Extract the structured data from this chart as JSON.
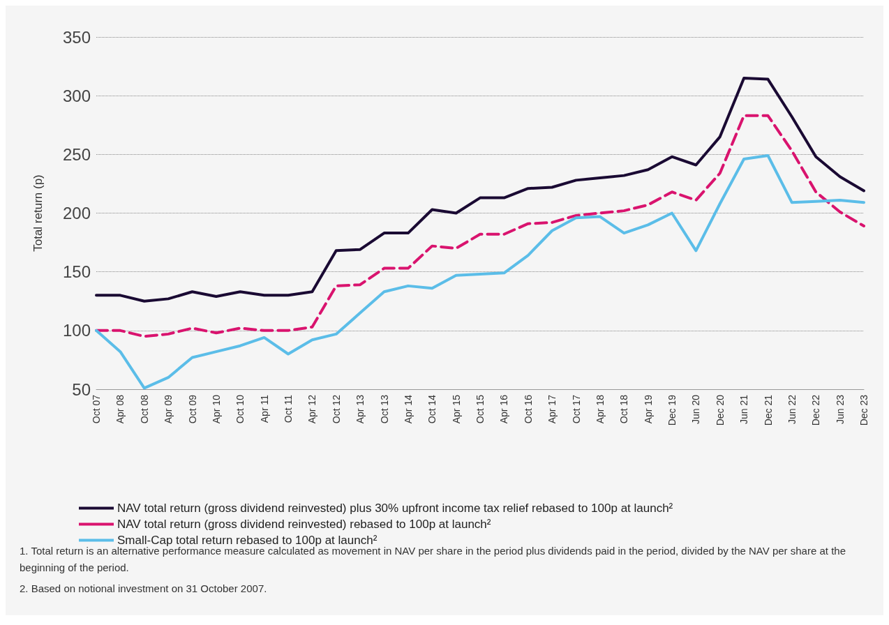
{
  "chart_data": {
    "type": "line",
    "ylabel": "Total return (p)",
    "categories": [
      "Oct 07",
      "Apr 08",
      "Oct 08",
      "Apr 09",
      "Oct 09",
      "Apr 10",
      "Oct 10",
      "Apr 11",
      "Oct 11",
      "Apr 12",
      "Oct 12",
      "Apr 13",
      "Oct 13",
      "Apr 14",
      "Oct 14",
      "Apr 15",
      "Oct 15",
      "Apr 16",
      "Oct 16",
      "Apr 17",
      "Oct 17",
      "Apr 18",
      "Oct 18",
      "Apr 19",
      "Dec 19",
      "Jun 20",
      "Dec 20",
      "Jun 21",
      "Dec 21",
      "Jun 22",
      "Dec 22",
      "Jun 23",
      "Dec 23"
    ],
    "series": [
      {
        "name": "NAV total return (gross dividend reinvested) plus 30% upfront income tax relief rebased to 100p at launch²",
        "color": "#1a0a33",
        "line_style": "solid",
        "values": [
          130,
          130,
          125,
          127,
          133,
          129,
          133,
          130,
          130,
          133,
          168,
          169,
          183,
          183,
          203,
          200,
          213,
          213,
          221,
          222,
          228,
          230,
          232,
          237,
          248,
          241,
          265,
          315,
          314,
          282,
          248,
          231,
          219
        ]
      },
      {
        "name": "NAV total return (gross dividend reinvested) rebased to 100p at launch²",
        "color": "#d9136e",
        "line_style": "dashed",
        "values": [
          100,
          100,
          95,
          97,
          102,
          98,
          102,
          100,
          100,
          103,
          138,
          139,
          153,
          153,
          172,
          170,
          182,
          182,
          191,
          192,
          198,
          200,
          202,
          207,
          218,
          211,
          234,
          283,
          283,
          253,
          218,
          201,
          189
        ]
      },
      {
        "name": "Small-Cap total return rebased to 100p at launch²",
        "color": "#5bbde8",
        "line_style": "solid",
        "values": [
          100,
          82,
          51,
          60,
          77,
          82,
          87,
          94,
          80,
          92,
          97,
          115,
          133,
          138,
          136,
          147,
          148,
          149,
          164,
          185,
          196,
          197,
          183,
          190,
          200,
          168,
          208,
          246,
          249,
          209,
          210,
          211,
          209
        ]
      }
    ],
    "ylim": [
      50,
      350
    ],
    "yticks": [
      50,
      100,
      150,
      200,
      250,
      300,
      350
    ],
    "grid": "y",
    "legend": "bottom",
    "marker": "none",
    "annotations": [
      "1.  Total return is an alternative performance measure calculated as movement in NAV per share in the period plus dividends paid in the period, divided by the NAV per share at the beginning of the period.",
      "2.  Based on notional investment on 31 October 2007."
    ]
  }
}
